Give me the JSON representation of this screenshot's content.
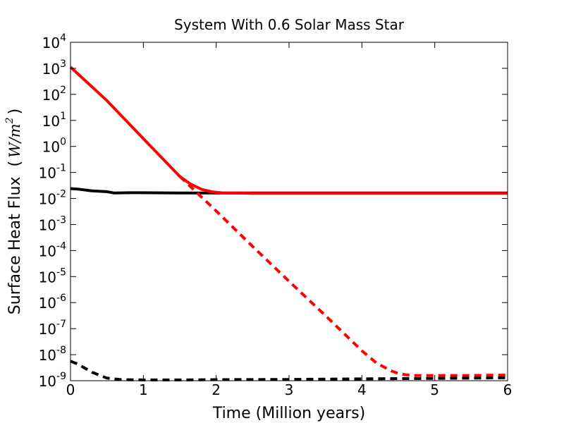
{
  "chart_data": {
    "type": "line",
    "title": "System With 0.6 Solar Mass Star",
    "xlabel": "Time  (Million years)",
    "ylabel": "Surface Heat Flux",
    "ylabel_unit_var": "W",
    "ylabel_unit_sep": "/",
    "ylabel_unit_base": "m",
    "ylabel_unit_exp": "2",
    "ylabel_paren_open": "(",
    "ylabel_paren_close": ")",
    "xlim": [
      0,
      6
    ],
    "ylim_log10": [
      -9,
      4
    ],
    "yscale": "log",
    "x_ticks": [
      {
        "value": 0,
        "label": "0"
      },
      {
        "value": 1,
        "label": "1"
      },
      {
        "value": 2,
        "label": "2"
      },
      {
        "value": 3,
        "label": "3"
      },
      {
        "value": 4,
        "label": "4"
      },
      {
        "value": 5,
        "label": "5"
      },
      {
        "value": 6,
        "label": "6"
      }
    ],
    "y_ticks": [
      {
        "exp": 4,
        "base": "10",
        "label": "4"
      },
      {
        "exp": 3,
        "base": "10",
        "label": "3"
      },
      {
        "exp": 2,
        "base": "10",
        "label": "2"
      },
      {
        "exp": 1,
        "base": "10",
        "label": "1"
      },
      {
        "exp": 0,
        "base": "10",
        "label": "0"
      },
      {
        "exp": -1,
        "base": "10",
        "label": "-1"
      },
      {
        "exp": -2,
        "base": "10",
        "label": "-2"
      },
      {
        "exp": -3,
        "base": "10",
        "label": "-3"
      },
      {
        "exp": -4,
        "base": "10",
        "label": "-4"
      },
      {
        "exp": -5,
        "base": "10",
        "label": "-5"
      },
      {
        "exp": -6,
        "base": "10",
        "label": "-6"
      },
      {
        "exp": -7,
        "base": "10",
        "label": "-7"
      },
      {
        "exp": -8,
        "base": "10",
        "label": "-8"
      },
      {
        "exp": -9,
        "base": "10",
        "label": "-9"
      }
    ],
    "series": [
      {
        "name": "black-solid",
        "color": "#000000",
        "style": "solid",
        "x": [
          0,
          0.1,
          0.3,
          0.5,
          0.6,
          0.8,
          1.0,
          1.5,
          2.0,
          2.5,
          3,
          4,
          5,
          6
        ],
        "log10y": [
          -1.62,
          -1.64,
          -1.71,
          -1.74,
          -1.79,
          -1.78,
          -1.78,
          -1.79,
          -1.79,
          -1.79,
          -1.79,
          -1.79,
          -1.79,
          -1.79
        ]
      },
      {
        "name": "red-solid",
        "color": "#ff0000",
        "style": "solid",
        "x": [
          0,
          0.5,
          1.0,
          1.5,
          1.65,
          1.8,
          1.95,
          2.1,
          2.3,
          2.5,
          3,
          4,
          5,
          6
        ],
        "log10y": [
          3.05,
          1.76,
          0.3,
          -1.15,
          -1.45,
          -1.65,
          -1.75,
          -1.79,
          -1.79,
          -1.8,
          -1.8,
          -1.8,
          -1.8,
          -1.8
        ]
      },
      {
        "name": "red-dashed",
        "color": "#ff0000",
        "style": "dashed",
        "x": [
          1.5,
          2.0,
          2.5,
          3.0,
          3.5,
          4.0,
          4.2,
          4.4,
          4.5,
          4.6,
          4.7,
          4.85,
          5.0,
          5.5,
          6.0
        ],
        "log10y": [
          -1.15,
          -2.48,
          -3.84,
          -5.18,
          -6.5,
          -7.85,
          -8.32,
          -8.62,
          -8.72,
          -8.77,
          -8.8,
          -8.8,
          -8.8,
          -8.8,
          -8.78
        ]
      },
      {
        "name": "black-dashed",
        "color": "#000000",
        "style": "dashed",
        "x": [
          0,
          0.1,
          0.3,
          0.5,
          0.7,
          1.0,
          1.5,
          2.0,
          3.0,
          4.0,
          5.0,
          6.0
        ],
        "log10y": [
          -8.25,
          -8.36,
          -8.68,
          -8.9,
          -8.96,
          -8.97,
          -8.97,
          -8.96,
          -8.95,
          -8.93,
          -8.91,
          -8.89
        ]
      }
    ]
  }
}
